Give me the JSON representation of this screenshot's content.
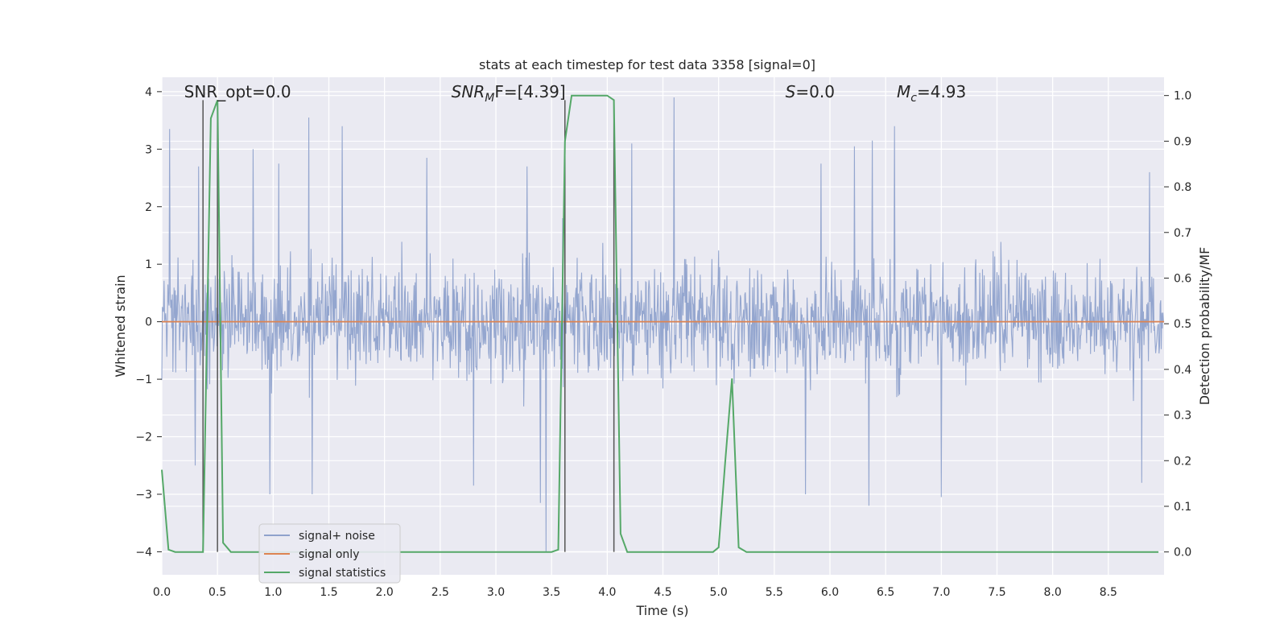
{
  "chart_data": {
    "type": "line",
    "title": "stats at each timestep for test data 3358 [signal=0]",
    "xlabel": "Time (s)",
    "ylabel_left": "Whitened strain",
    "ylabel_right": "Detection probability/MF",
    "xlim": [
      0.0,
      9.0
    ],
    "ylim_left": [
      -4.4,
      4.25
    ],
    "ylim_right": [
      -0.05,
      1.04
    ],
    "x_ticks": [
      "0.0",
      "0.5",
      "1.0",
      "1.5",
      "2.0",
      "2.5",
      "3.0",
      "3.5",
      "4.0",
      "4.5",
      "5.0",
      "5.5",
      "6.0",
      "6.5",
      "7.0",
      "7.5",
      "8.0",
      "8.5"
    ],
    "y_ticks_left": [
      "−4",
      "−3",
      "−2",
      "−1",
      "0",
      "1",
      "2",
      "3",
      "4"
    ],
    "y_ticks_right": [
      "0.0",
      "0.1",
      "0.2",
      "0.3",
      "0.4",
      "0.5",
      "0.6",
      "0.7",
      "0.8",
      "0.9",
      "1.0"
    ],
    "grid": true,
    "legend_placement": "lower-left",
    "annotations": [
      {
        "text": "SNR_opt=0.0",
        "x": 0.2
      },
      {
        "text": "SNR",
        "sub": "M",
        "suffix": "F=[4.39]",
        "x": 2.6
      },
      {
        "text": "S",
        "suffix": "=0.0",
        "x": 5.6
      },
      {
        "text": "M",
        "sub": "c",
        "suffix": "=4.93",
        "x": 6.6
      }
    ],
    "vertical_lines_x": [
      0.37,
      0.5,
      3.62,
      4.06
    ],
    "noise_envelope": {
      "typical_upper": 1.8,
      "typical_lower": -1.7,
      "max": 3.9,
      "min": -4.0,
      "spikes": [
        {
          "x": 0.07,
          "v": 3.35
        },
        {
          "x": 0.33,
          "v": 2.7
        },
        {
          "x": 0.82,
          "v": 3.0
        },
        {
          "x": 1.05,
          "v": 2.75
        },
        {
          "x": 1.32,
          "v": 3.55
        },
        {
          "x": 1.62,
          "v": 3.4
        },
        {
          "x": 2.38,
          "v": 2.85
        },
        {
          "x": 3.28,
          "v": 2.7
        },
        {
          "x": 3.6,
          "v": 1.8
        },
        {
          "x": 4.22,
          "v": 3.1
        },
        {
          "x": 4.6,
          "v": 3.9
        },
        {
          "x": 5.92,
          "v": 2.75
        },
        {
          "x": 6.22,
          "v": 3.05
        },
        {
          "x": 6.38,
          "v": 3.15
        },
        {
          "x": 6.58,
          "v": 3.4
        },
        {
          "x": 8.87,
          "v": 2.6
        },
        {
          "x": 0.3,
          "v": -2.5
        },
        {
          "x": 0.97,
          "v": -3.0
        },
        {
          "x": 1.35,
          "v": -3.0
        },
        {
          "x": 2.8,
          "v": -2.85
        },
        {
          "x": 3.4,
          "v": -3.15
        },
        {
          "x": 3.45,
          "v": -4.0
        },
        {
          "x": 5.78,
          "v": -3.0
        },
        {
          "x": 6.35,
          "v": -3.2
        },
        {
          "x": 7.0,
          "v": -3.05
        },
        {
          "x": 8.8,
          "v": -2.8
        }
      ]
    },
    "series": [
      {
        "name": "signal+ noise",
        "axis": "left",
        "color": "#8fa2cc"
      },
      {
        "name": "signal only",
        "axis": "left",
        "color": "#dd8452",
        "x": [
          0.0,
          9.0
        ],
        "y": [
          0.0,
          0.0
        ]
      },
      {
        "name": "signal statistics",
        "axis": "right",
        "color": "#55a868",
        "x": [
          0.0,
          0.06,
          0.12,
          0.37,
          0.44,
          0.5,
          0.55,
          0.62,
          3.5,
          3.56,
          3.62,
          3.68,
          4.0,
          4.06,
          4.12,
          4.18,
          4.95,
          5.0,
          5.06,
          5.12,
          5.18,
          5.25,
          8.95
        ],
        "y": [
          0.18,
          0.005,
          0.0,
          0.0,
          0.95,
          0.99,
          0.02,
          0.0,
          0.0,
          0.005,
          0.9,
          1.0,
          1.0,
          0.99,
          0.04,
          0.0,
          0.0,
          0.01,
          0.2,
          0.38,
          0.01,
          0.0,
          0.0
        ]
      }
    ]
  }
}
